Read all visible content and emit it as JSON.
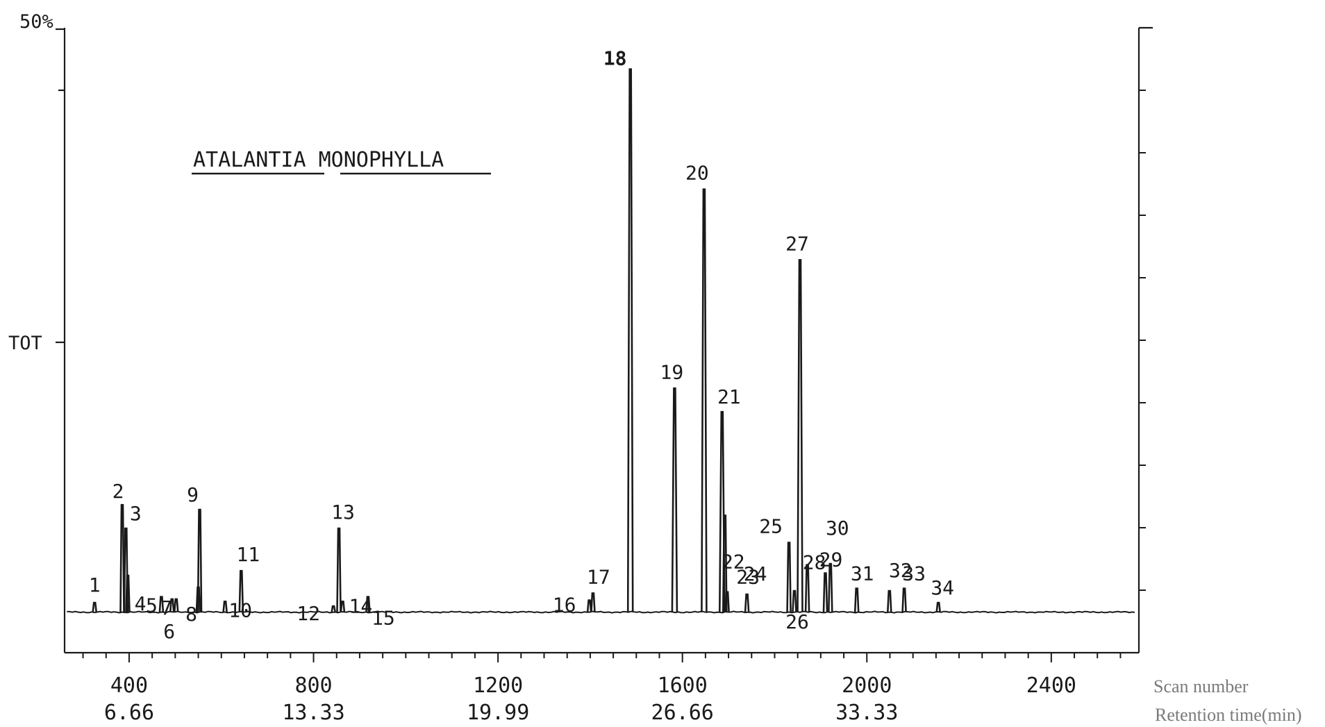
{
  "chart_data": {
    "type": "line",
    "title": "ATALANTIA MONOPHYLLA",
    "y_top_label": "50%",
    "y_mid_label": "TOT",
    "x_axis_labels": {
      "scan": "Scan number",
      "retention": "Retention time(min)"
    },
    "x_ticks": [
      {
        "scan": 400,
        "scan_label": "400",
        "rt_label": "6.66"
      },
      {
        "scan": 800,
        "scan_label": "800",
        "rt_label": "13.33"
      },
      {
        "scan": 1200,
        "scan_label": "1200",
        "rt_label": "19.99"
      },
      {
        "scan": 1600,
        "scan_label": "1600",
        "rt_label": "26.66"
      },
      {
        "scan": 2000,
        "scan_label": "2000",
        "rt_label": "33.33"
      },
      {
        "scan": 2400,
        "scan_label": "2400",
        "rt_label": ""
      }
    ],
    "xlim": [
      260,
      2590
    ],
    "ylim": [
      0,
      50
    ],
    "baseline": 0.5,
    "peaks": [
      {
        "label": "1",
        "scan": 325,
        "height": 1.3
      },
      {
        "label": "2",
        "scan": 385,
        "height": 9.6
      },
      {
        "label": "3",
        "scan": 393,
        "height": 7.6
      },
      {
        "label": "4",
        "scan": 397,
        "height": 3.6
      },
      {
        "label": "5",
        "scan": 470,
        "height": 1.8
      },
      {
        "label": "6",
        "scan": 493,
        "height": 1.6
      },
      {
        "label": "7",
        "scan": 502,
        "height": 1.6
      },
      {
        "label": "8",
        "scan": 550,
        "height": 2.6
      },
      {
        "label": "9",
        "scan": 553,
        "height": 9.2
      },
      {
        "label": "10",
        "scan": 608,
        "height": 1.4
      },
      {
        "label": "11",
        "scan": 643,
        "height": 4.0
      },
      {
        "label": "12",
        "scan": 843,
        "height": 1.0
      },
      {
        "label": "13",
        "scan": 855,
        "height": 7.6
      },
      {
        "label": "14",
        "scan": 863,
        "height": 1.4
      },
      {
        "label": "15",
        "scan": 918,
        "height": 1.8
      },
      {
        "label": "16",
        "scan": 1398,
        "height": 1.5
      },
      {
        "label": "17",
        "scan": 1406,
        "height": 2.1
      },
      {
        "label": "18",
        "scan": 1487,
        "height": 46.6
      },
      {
        "label": "19",
        "scan": 1583,
        "height": 19.5
      },
      {
        "label": "20",
        "scan": 1647,
        "height": 36.4
      },
      {
        "label": "21",
        "scan": 1686,
        "height": 17.5
      },
      {
        "label": "22",
        "scan": 1692,
        "height": 8.7
      },
      {
        "label": "23",
        "scan": 1697,
        "height": 2.2
      },
      {
        "label": "24",
        "scan": 1740,
        "height": 2.0
      },
      {
        "label": "25",
        "scan": 1831,
        "height": 6.4
      },
      {
        "label": "26",
        "scan": 1843,
        "height": 2.3
      },
      {
        "label": "27",
        "scan": 1855,
        "height": 30.4
      },
      {
        "label": "28",
        "scan": 1871,
        "height": 4.5
      },
      {
        "label": "29",
        "scan": 1910,
        "height": 3.8
      },
      {
        "label": "30",
        "scan": 1921,
        "height": 4.6
      },
      {
        "label": "31",
        "scan": 1978,
        "height": 2.5
      },
      {
        "label": "32",
        "scan": 2049,
        "height": 2.3
      },
      {
        "label": "33",
        "scan": 2081,
        "height": 2.5
      },
      {
        "label": "34",
        "scan": 2155,
        "height": 1.3
      }
    ]
  }
}
